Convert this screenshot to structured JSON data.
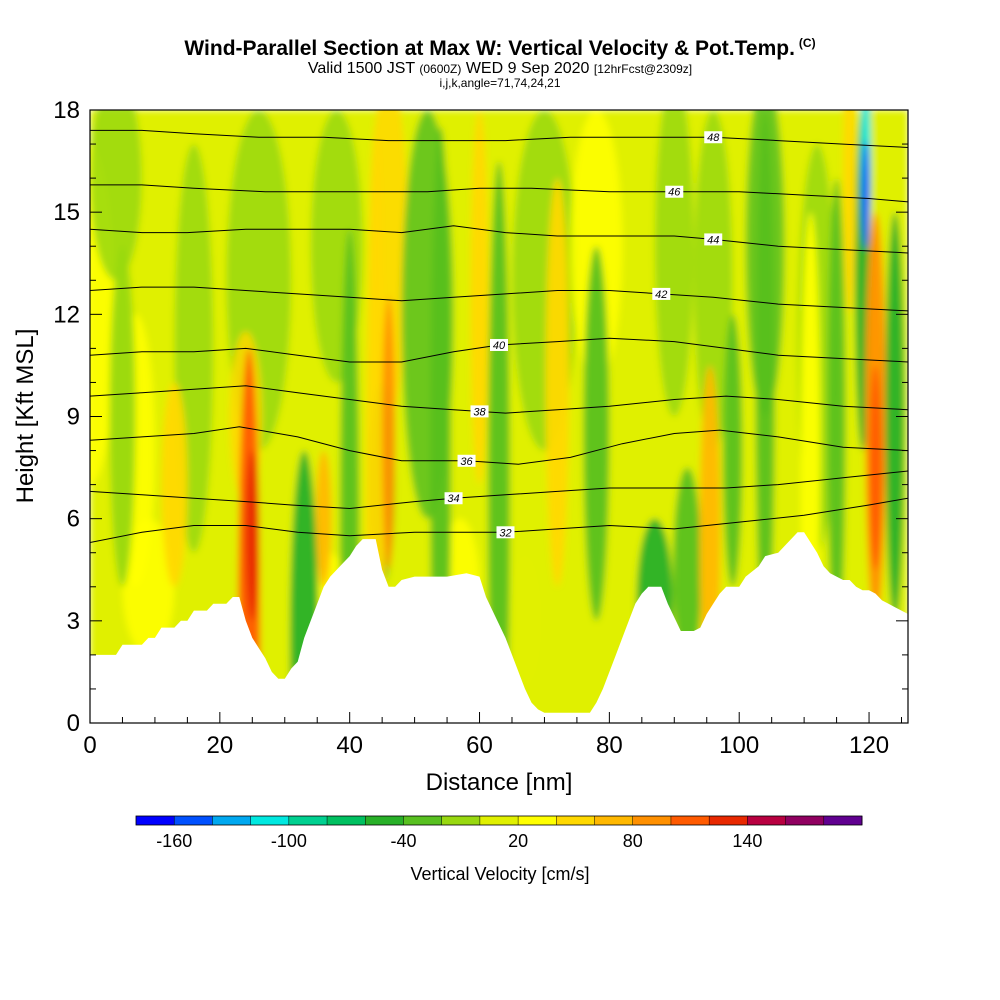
{
  "title": {
    "main": "Wind-Parallel Section at Max W: Vertical Velocity & Pot.Temp.",
    "copyright": "(C)",
    "valid_prefix": "Valid 1500 JST",
    "utc": "(0600Z)",
    "date": "WED 9 Sep 2020",
    "forecast": "[12hrFcst@2309z]",
    "indices": "i,j,k,angle=71,74,24,21"
  },
  "chart_data": {
    "type": "heatmap",
    "xlabel": "Distance [nm]",
    "ylabel": "Height [Kft MSL]",
    "xlim": [
      0,
      126
    ],
    "ylim": [
      0,
      18
    ],
    "x_ticks": [
      0,
      20,
      40,
      60,
      80,
      100,
      120
    ],
    "y_ticks": [
      0,
      3,
      6,
      9,
      12,
      15,
      18
    ],
    "colorbar": {
      "label": "Vertical Velocity [cm/s]",
      "tick_labels": [
        "-160",
        "-100",
        "-40",
        "20",
        "80",
        "140"
      ],
      "tick_values": [
        -160,
        -100,
        -40,
        20,
        80,
        140
      ],
      "bins": [
        -180,
        -160,
        -140,
        -120,
        -100,
        -80,
        -60,
        -40,
        -20,
        0,
        20,
        40,
        60,
        80,
        100,
        120,
        140,
        160,
        180
      ],
      "colors": [
        "#0000ff",
        "#0050ff",
        "#00a8f0",
        "#00e8e0",
        "#00d090",
        "#00c060",
        "#28b028",
        "#58c020",
        "#98d810",
        "#e0f000",
        "#ffff00",
        "#ffd800",
        "#ffb800",
        "#ff9000",
        "#ff5a00",
        "#e82800",
        "#b80040",
        "#900060",
        "#600090"
      ]
    },
    "terrain_kft": [
      [
        0,
        2.0
      ],
      [
        4,
        2.0
      ],
      [
        5,
        2.3
      ],
      [
        8,
        2.3
      ],
      [
        9,
        2.5
      ],
      [
        10,
        2.5
      ],
      [
        11,
        2.8
      ],
      [
        13,
        2.8
      ],
      [
        14,
        3.0
      ],
      [
        15,
        3.0
      ],
      [
        16,
        3.3
      ],
      [
        18,
        3.3
      ],
      [
        19,
        3.5
      ],
      [
        21,
        3.5
      ],
      [
        22,
        3.7
      ],
      [
        23,
        3.7
      ],
      [
        24,
        3.0
      ],
      [
        25,
        2.5
      ],
      [
        26,
        2.2
      ],
      [
        27,
        1.9
      ],
      [
        28,
        1.5
      ],
      [
        29,
        1.3
      ],
      [
        30,
        1.3
      ],
      [
        31,
        1.6
      ],
      [
        32,
        1.8
      ],
      [
        33,
        2.5
      ],
      [
        34,
        3.0
      ],
      [
        35,
        3.5
      ],
      [
        36,
        4.0
      ],
      [
        37,
        4.3
      ],
      [
        38,
        4.5
      ],
      [
        39,
        4.7
      ],
      [
        40,
        4.9
      ],
      [
        41,
        5.2
      ],
      [
        42,
        5.4
      ],
      [
        44,
        5.4
      ],
      [
        45,
        4.5
      ],
      [
        46,
        4.0
      ],
      [
        47,
        4.0
      ],
      [
        48,
        4.2
      ],
      [
        50,
        4.3
      ],
      [
        55,
        4.3
      ],
      [
        58,
        4.4
      ],
      [
        60,
        4.3
      ],
      [
        61,
        3.7
      ],
      [
        62,
        3.3
      ],
      [
        63,
        2.9
      ],
      [
        64,
        2.5
      ],
      [
        65,
        2.0
      ],
      [
        66,
        1.5
      ],
      [
        67,
        1.0
      ],
      [
        68,
        0.6
      ],
      [
        69,
        0.4
      ],
      [
        70,
        0.3
      ],
      [
        77,
        0.3
      ],
      [
        78,
        0.6
      ],
      [
        79,
        1.0
      ],
      [
        80,
        1.5
      ],
      [
        81,
        2.0
      ],
      [
        82,
        2.5
      ],
      [
        83,
        3.0
      ],
      [
        84,
        3.5
      ],
      [
        85,
        3.8
      ],
      [
        86,
        4.0
      ],
      [
        88,
        4.0
      ],
      [
        89,
        3.5
      ],
      [
        90,
        3.1
      ],
      [
        91,
        2.7
      ],
      [
        93,
        2.7
      ],
      [
        94,
        2.8
      ],
      [
        95,
        3.2
      ],
      [
        96,
        3.5
      ],
      [
        97,
        3.8
      ],
      [
        98,
        4.0
      ],
      [
        100,
        4.0
      ],
      [
        101,
        4.3
      ],
      [
        103,
        4.6
      ],
      [
        104,
        4.9
      ],
      [
        106,
        5.0
      ],
      [
        107,
        5.2
      ],
      [
        108,
        5.4
      ],
      [
        109,
        5.6
      ],
      [
        110,
        5.6
      ],
      [
        111,
        5.3
      ],
      [
        112,
        5.0
      ],
      [
        113,
        4.6
      ],
      [
        114,
        4.4
      ],
      [
        115,
        4.3
      ],
      [
        116,
        4.2
      ],
      [
        117,
        4.2
      ],
      [
        118,
        4.0
      ],
      [
        119,
        3.9
      ],
      [
        120,
        3.9
      ],
      [
        121,
        3.8
      ],
      [
        122,
        3.6
      ],
      [
        123,
        3.5
      ],
      [
        124,
        3.4
      ],
      [
        125,
        3.3
      ],
      [
        126,
        3.2
      ]
    ],
    "isentropes": [
      {
        "value": 32,
        "points": [
          [
            0,
            5.3
          ],
          [
            8,
            5.6
          ],
          [
            16,
            5.8
          ],
          [
            24,
            5.8
          ],
          [
            32,
            5.6
          ],
          [
            40,
            5.5
          ],
          [
            50,
            5.6
          ],
          [
            60,
            5.6
          ],
          [
            64,
            5.6
          ],
          [
            72,
            5.7
          ],
          [
            80,
            5.8
          ],
          [
            90,
            5.7
          ],
          [
            100,
            5.9
          ],
          [
            110,
            6.1
          ],
          [
            120,
            6.4
          ],
          [
            126,
            6.6
          ]
        ],
        "label_x": 64
      },
      {
        "value": 34,
        "points": [
          [
            0,
            6.8
          ],
          [
            8,
            6.7
          ],
          [
            16,
            6.6
          ],
          [
            24,
            6.5
          ],
          [
            31,
            6.4
          ],
          [
            40,
            6.3
          ],
          [
            50,
            6.5
          ],
          [
            56,
            6.6
          ],
          [
            64,
            6.7
          ],
          [
            72,
            6.8
          ],
          [
            80,
            6.9
          ],
          [
            90,
            6.9
          ],
          [
            98,
            6.9
          ],
          [
            106,
            7.0
          ],
          [
            116,
            7.2
          ],
          [
            126,
            7.4
          ]
        ],
        "label_x": 56
      },
      {
        "value": 36,
        "points": [
          [
            0,
            8.3
          ],
          [
            8,
            8.4
          ],
          [
            16,
            8.5
          ],
          [
            23,
            8.7
          ],
          [
            32,
            8.4
          ],
          [
            40,
            8.0
          ],
          [
            48,
            7.7
          ],
          [
            58,
            7.7
          ],
          [
            66,
            7.6
          ],
          [
            74,
            7.8
          ],
          [
            82,
            8.2
          ],
          [
            90,
            8.5
          ],
          [
            97,
            8.6
          ],
          [
            106,
            8.4
          ],
          [
            116,
            8.1
          ],
          [
            126,
            8.0
          ]
        ],
        "label_x": 58
      },
      {
        "value": 38,
        "points": [
          [
            0,
            9.6
          ],
          [
            8,
            9.7
          ],
          [
            16,
            9.8
          ],
          [
            24,
            9.9
          ],
          [
            32,
            9.7
          ],
          [
            40,
            9.5
          ],
          [
            48,
            9.3
          ],
          [
            56,
            9.2
          ],
          [
            64,
            9.1
          ],
          [
            72,
            9.2
          ],
          [
            80,
            9.3
          ],
          [
            90,
            9.5
          ],
          [
            98,
            9.6
          ],
          [
            106,
            9.5
          ],
          [
            116,
            9.3
          ],
          [
            126,
            9.2
          ]
        ],
        "label_x": 60
      },
      {
        "value": 40,
        "points": [
          [
            0,
            10.8
          ],
          [
            8,
            10.9
          ],
          [
            16,
            10.9
          ],
          [
            24,
            11.0
          ],
          [
            32,
            10.8
          ],
          [
            40,
            10.6
          ],
          [
            48,
            10.6
          ],
          [
            56,
            10.9
          ],
          [
            63,
            11.1
          ],
          [
            72,
            11.2
          ],
          [
            80,
            11.3
          ],
          [
            90,
            11.2
          ],
          [
            98,
            11.0
          ],
          [
            106,
            10.8
          ],
          [
            116,
            10.7
          ],
          [
            126,
            10.6
          ]
        ],
        "label_x": 63
      },
      {
        "value": 42,
        "points": [
          [
            0,
            12.7
          ],
          [
            8,
            12.8
          ],
          [
            16,
            12.8
          ],
          [
            24,
            12.7
          ],
          [
            32,
            12.6
          ],
          [
            40,
            12.5
          ],
          [
            48,
            12.4
          ],
          [
            56,
            12.5
          ],
          [
            64,
            12.6
          ],
          [
            72,
            12.7
          ],
          [
            80,
            12.7
          ],
          [
            88,
            12.6
          ],
          [
            96,
            12.5
          ],
          [
            106,
            12.3
          ],
          [
            116,
            12.2
          ],
          [
            126,
            12.1
          ]
        ],
        "label_x": 88
      },
      {
        "value": 44,
        "points": [
          [
            0,
            14.5
          ],
          [
            8,
            14.4
          ],
          [
            15,
            14.4
          ],
          [
            24,
            14.5
          ],
          [
            32,
            14.5
          ],
          [
            40,
            14.5
          ],
          [
            48,
            14.4
          ],
          [
            56,
            14.6
          ],
          [
            64,
            14.4
          ],
          [
            72,
            14.3
          ],
          [
            80,
            14.3
          ],
          [
            90,
            14.3
          ],
          [
            96,
            14.2
          ],
          [
            106,
            14.0
          ],
          [
            116,
            13.9
          ],
          [
            126,
            13.8
          ]
        ],
        "label_x": 96
      },
      {
        "value": 46,
        "points": [
          [
            0,
            15.8
          ],
          [
            8,
            15.8
          ],
          [
            16,
            15.7
          ],
          [
            27,
            15.6
          ],
          [
            36,
            15.6
          ],
          [
            44,
            15.6
          ],
          [
            52,
            15.6
          ],
          [
            60,
            15.7
          ],
          [
            68,
            15.7
          ],
          [
            80,
            15.6
          ],
          [
            90,
            15.6
          ],
          [
            100,
            15.6
          ],
          [
            110,
            15.5
          ],
          [
            120,
            15.4
          ],
          [
            126,
            15.3
          ]
        ],
        "label_x": 90
      },
      {
        "value": 48,
        "points": [
          [
            0,
            17.4
          ],
          [
            8,
            17.4
          ],
          [
            16,
            17.3
          ],
          [
            26,
            17.2
          ],
          [
            36,
            17.2
          ],
          [
            46,
            17.1
          ],
          [
            55,
            17.1
          ],
          [
            64,
            17.1
          ],
          [
            74,
            17.2
          ],
          [
            84,
            17.2
          ],
          [
            96,
            17.2
          ],
          [
            106,
            17.1
          ],
          [
            116,
            17.0
          ],
          [
            126,
            16.9
          ]
        ],
        "label_x": 96
      }
    ],
    "isentrope_line_color": "#000000"
  }
}
